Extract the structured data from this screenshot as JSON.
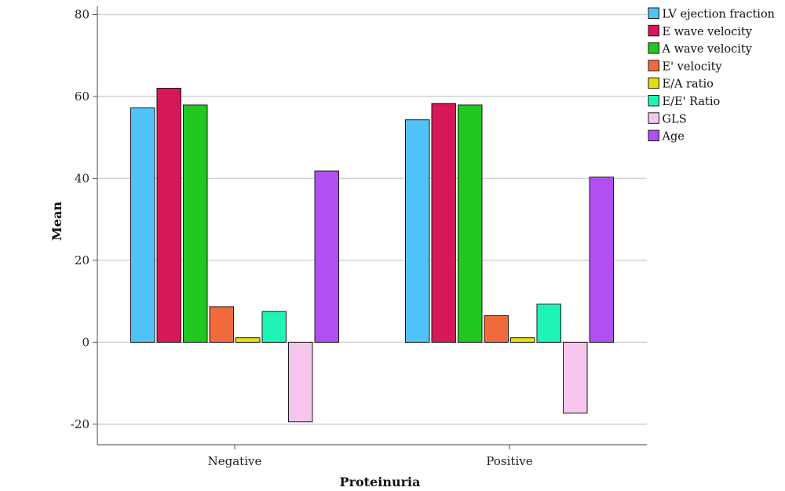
{
  "chart_data": {
    "type": "bar",
    "title": "",
    "xlabel": "Proteinuria",
    "ylabel": "Mean",
    "categories": [
      "Negative",
      "Positive"
    ],
    "ylim": [
      -25,
      82
    ],
    "yticks": [
      -20,
      0,
      20,
      40,
      60,
      80
    ],
    "grid": true,
    "legend_position": "top-right",
    "series": [
      {
        "name": "LV ejection fraction",
        "color": "#4fc3f7",
        "values": [
          57.2,
          54.3
        ]
      },
      {
        "name": "E wave velocity",
        "color": "#d6175a",
        "values": [
          62.0,
          58.3
        ]
      },
      {
        "name": "A wave velocity",
        "color": "#22c71f",
        "values": [
          57.9,
          57.9
        ]
      },
      {
        "name": "E' velocity",
        "color": "#f06a3c",
        "values": [
          8.7,
          6.5
        ]
      },
      {
        "name": "E/A ratio",
        "color": "#e3dd14",
        "values": [
          1.1,
          1.1
        ]
      },
      {
        "name": "E/E' Ratio",
        "color": "#1ef5b4",
        "values": [
          7.5,
          9.3
        ]
      },
      {
        "name": "GLS",
        "color": "#f7c6ef",
        "values": [
          -19.4,
          -17.3
        ]
      },
      {
        "name": "Age",
        "color": "#b24ff2",
        "values": [
          41.8,
          40.3
        ]
      }
    ]
  }
}
